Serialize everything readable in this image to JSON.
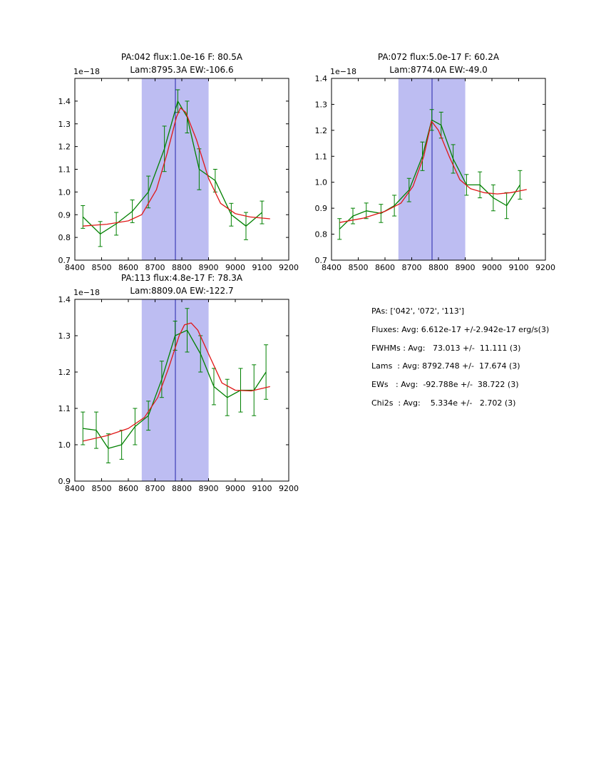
{
  "colors": {
    "background": "#ffffff",
    "data_series": "#008000",
    "fit_curve": "#e01717",
    "band_fill": "#bdbdf2",
    "center_line": "#2222aa",
    "axis": "#000000",
    "text": "#000000"
  },
  "stats_panel": {
    "lines": [
      "PAs: ['042', '072', '113']",
      "Fluxes: Avg: 6.612e-17 +/-2.942e-17 erg/s(3)",
      "FWHMs : Avg:   73.013 +/-  11.111 (3)",
      "Lams  : Avg: 8792.748 +/-  17.674 (3)",
      "EWs   : Avg:  -92.788e +/-  38.722 (3)",
      "Chi2s  : Avg:    5.334e +/-   2.702 (3)"
    ]
  },
  "chart_data": [
    {
      "type": "line",
      "title_line1": "PA:042 flux:1.0e-16 F: 80.5A",
      "title_line2": "Lam:8795.3A EW:-106.6",
      "offset_label": "1e−18",
      "xlim": [
        8400,
        9200
      ],
      "ylim": [
        0.7,
        1.5
      ],
      "xtick_labels": [
        "8400",
        "8500",
        "8600",
        "8700",
        "8800",
        "8900",
        "9000",
        "9100",
        "9200"
      ],
      "ytick_labels": [
        "0.7",
        "0.8",
        "0.9",
        "1.0",
        "1.1",
        "1.2",
        "1.3",
        "1.4"
      ],
      "grid": false,
      "legend": false,
      "band": [
        8650,
        8900
      ],
      "center_line_x": 8776,
      "series": [
        {
          "name": "spectrum",
          "x": [
            8430,
            8495,
            8555,
            8615,
            8675,
            8735,
            8785,
            8820,
            8865,
            8925,
            8985,
            9040,
            9100
          ],
          "y": [
            0.89,
            0.815,
            0.86,
            0.915,
            1.0,
            1.19,
            1.4,
            1.33,
            1.1,
            1.05,
            0.9,
            0.85,
            0.91
          ],
          "yerr": [
            0.05,
            0.055,
            0.05,
            0.05,
            0.07,
            0.1,
            0.05,
            0.07,
            0.09,
            0.05,
            0.05,
            0.06,
            0.05
          ]
        },
        {
          "name": "fit",
          "x": [
            8430,
            8520,
            8600,
            8650,
            8705,
            8745,
            8780,
            8795,
            8815,
            8855,
            8900,
            8945,
            9000,
            9055,
            9130
          ],
          "y": [
            0.85,
            0.858,
            0.873,
            0.9,
            1.01,
            1.17,
            1.33,
            1.37,
            1.35,
            1.23,
            1.06,
            0.95,
            0.905,
            0.89,
            0.882
          ]
        }
      ]
    },
    {
      "type": "line",
      "title_line1": "PA:072 flux:5.0e-17 F: 60.2A",
      "title_line2": "Lam:8774.0A EW:-49.0",
      "offset_label": "1e−18",
      "xlim": [
        8400,
        9200
      ],
      "ylim": [
        0.7,
        1.4
      ],
      "xtick_labels": [
        "8400",
        "8500",
        "8600",
        "8700",
        "8800",
        "8900",
        "9000",
        "9100",
        "9200"
      ],
      "ytick_labels": [
        "0.7",
        "0.8",
        "0.9",
        "1.0",
        "1.1",
        "1.2",
        "1.3",
        "1.4"
      ],
      "grid": false,
      "legend": false,
      "band": [
        8650,
        8900
      ],
      "center_line_x": 8776,
      "series": [
        {
          "name": "spectrum",
          "x": [
            8430,
            8480,
            8530,
            8585,
            8635,
            8690,
            8740,
            8775,
            8810,
            8855,
            8905,
            8955,
            9005,
            9055,
            9105
          ],
          "y": [
            0.82,
            0.87,
            0.89,
            0.88,
            0.91,
            0.97,
            1.1,
            1.24,
            1.22,
            1.09,
            0.99,
            0.99,
            0.94,
            0.91,
            0.99
          ],
          "yerr": [
            0.04,
            0.03,
            0.03,
            0.035,
            0.04,
            0.045,
            0.055,
            0.04,
            0.05,
            0.055,
            0.04,
            0.05,
            0.05,
            0.05,
            0.055
          ]
        },
        {
          "name": "fit",
          "x": [
            8430,
            8520,
            8600,
            8660,
            8705,
            8745,
            8774,
            8800,
            8840,
            8880,
            8920,
            8970,
            9020,
            9070,
            9130
          ],
          "y": [
            0.845,
            0.862,
            0.888,
            0.92,
            0.985,
            1.1,
            1.235,
            1.2,
            1.1,
            1.01,
            0.975,
            0.96,
            0.955,
            0.96,
            0.972
          ]
        }
      ]
    },
    {
      "type": "line",
      "title_line1": "PA:113 flux:4.8e-17 F: 78.3A",
      "title_line2": "Lam:8809.0A EW:-122.7",
      "offset_label": "1e−18",
      "xlim": [
        8400,
        9200
      ],
      "ylim": [
        0.9,
        1.4
      ],
      "xtick_labels": [
        "8400",
        "8500",
        "8600",
        "8700",
        "8800",
        "8900",
        "9000",
        "9100",
        "9200"
      ],
      "ytick_labels": [
        "0.9",
        "1.0",
        "1.1",
        "1.2",
        "1.3",
        "1.4"
      ],
      "grid": false,
      "legend": false,
      "band": [
        8650,
        8900
      ],
      "center_line_x": 8776,
      "series": [
        {
          "name": "spectrum",
          "x": [
            8430,
            8480,
            8525,
            8575,
            8625,
            8675,
            8725,
            8775,
            8820,
            8870,
            8920,
            8970,
            9020,
            9070,
            9115
          ],
          "y": [
            1.045,
            1.04,
            0.99,
            1.0,
            1.05,
            1.08,
            1.18,
            1.3,
            1.315,
            1.25,
            1.16,
            1.13,
            1.15,
            1.15,
            1.2
          ],
          "yerr": [
            0.045,
            0.05,
            0.04,
            0.04,
            0.05,
            0.04,
            0.05,
            0.04,
            0.06,
            0.05,
            0.05,
            0.05,
            0.06,
            0.07,
            0.075
          ]
        },
        {
          "name": "fit",
          "x": [
            8430,
            8520,
            8600,
            8660,
            8710,
            8750,
            8790,
            8810,
            8835,
            8860,
            8900,
            8950,
            9000,
            9060,
            9130
          ],
          "y": [
            1.01,
            1.025,
            1.045,
            1.075,
            1.13,
            1.21,
            1.3,
            1.33,
            1.335,
            1.315,
            1.25,
            1.17,
            1.15,
            1.148,
            1.16
          ]
        }
      ]
    }
  ]
}
